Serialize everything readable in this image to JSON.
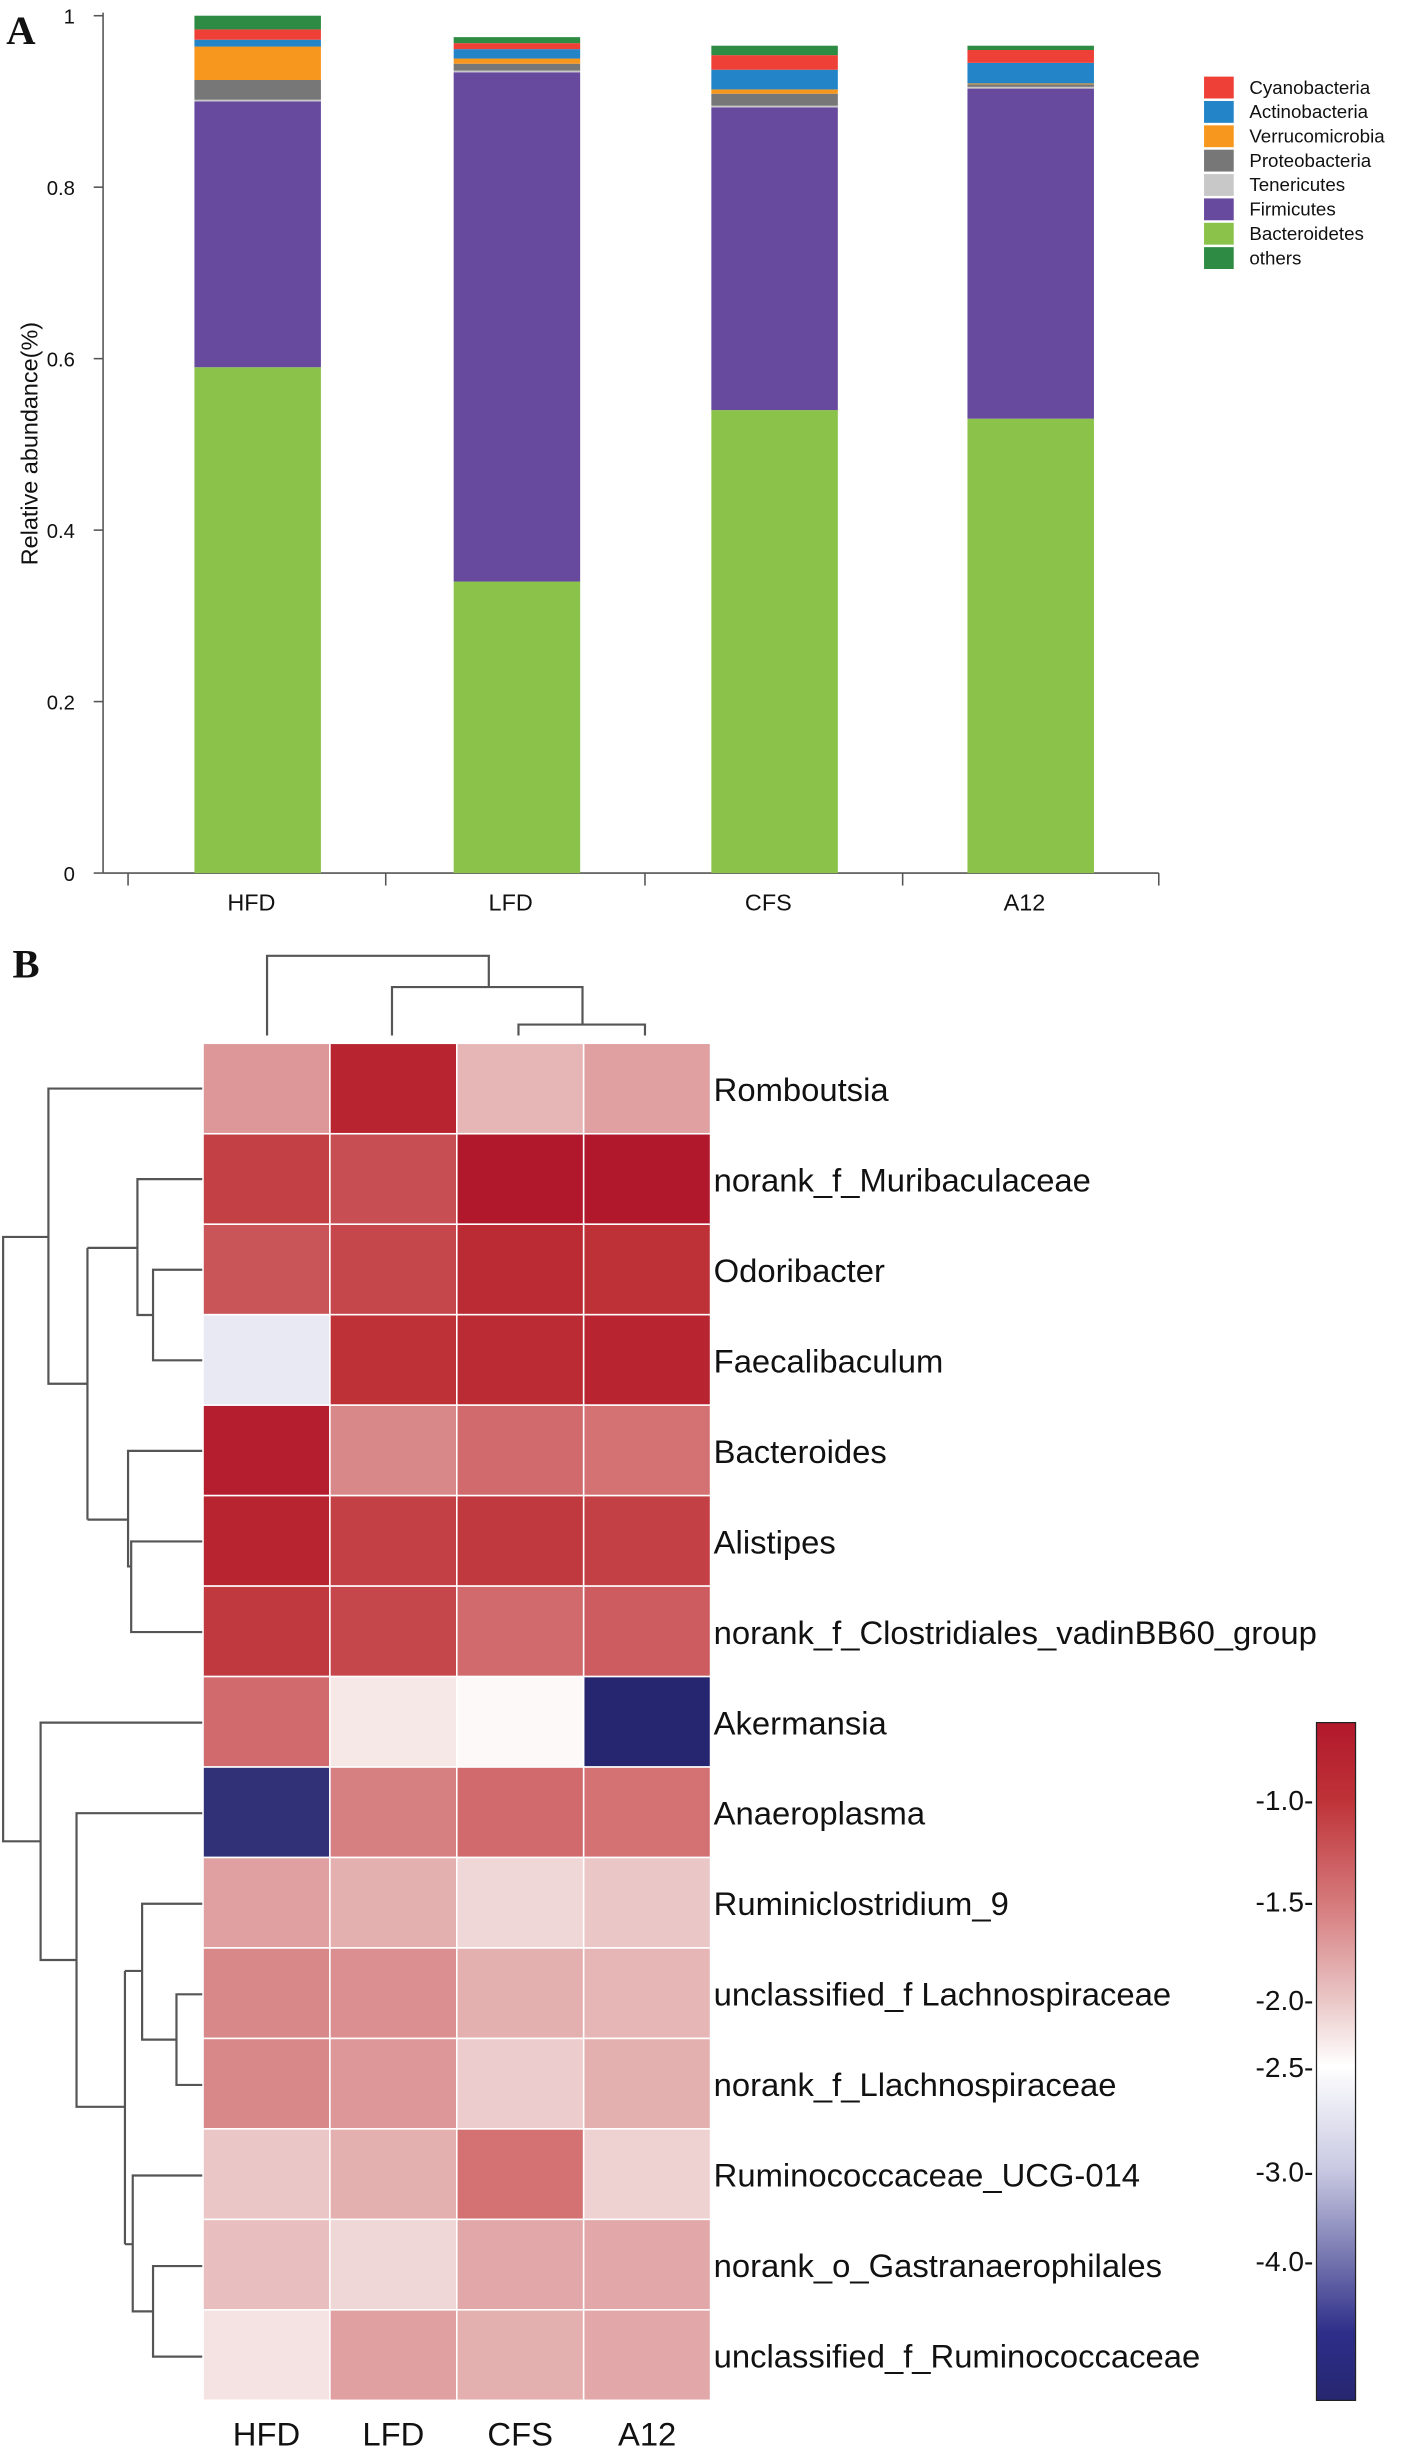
{
  "panels": {
    "a": "A",
    "b": "B"
  },
  "chart_data": [
    {
      "type": "bar",
      "stacked": true,
      "title": "",
      "xlabel": "",
      "ylabel": "Relative abundance(%)",
      "ylim": [
        0,
        1
      ],
      "yticks": [
        0,
        0.2,
        0.4,
        0.6,
        0.8,
        1
      ],
      "ytick_labels": [
        "0",
        "0.2",
        "0.4",
        "0.6",
        "0.8",
        "1"
      ],
      "categories": [
        "HFD",
        "LFD",
        "CFS",
        "A12"
      ],
      "legend_position": "top-right",
      "legend_order": [
        "Cyanobacteria",
        "Actinobacteria",
        "Verrucomicrobia",
        "Proteobacteria",
        "Tenericutes",
        "Firmicutes",
        "Bacteroidetes",
        "others"
      ],
      "series": [
        {
          "name": "Bacteroidetes",
          "color": "#8bc34a",
          "values": [
            0.59,
            0.34,
            0.54,
            0.53
          ]
        },
        {
          "name": "Firmicutes",
          "color": "#674a9e",
          "values": [
            0.31,
            0.594,
            0.353,
            0.385
          ]
        },
        {
          "name": "Tenericutes",
          "color": "#c8c8c8",
          "values": [
            0.002,
            0.002,
            0.002,
            0.002
          ]
        },
        {
          "name": "Proteobacteria",
          "color": "#777777",
          "values": [
            0.023,
            0.008,
            0.014,
            0.003
          ]
        },
        {
          "name": "Verrucomicrobia",
          "color": "#f7971e",
          "values": [
            0.039,
            0.006,
            0.005,
            0.001
          ]
        },
        {
          "name": "Actinobacteria",
          "color": "#2385c7",
          "values": [
            0.008,
            0.011,
            0.023,
            0.024
          ]
        },
        {
          "name": "Cyanobacteria",
          "color": "#ee4036",
          "values": [
            0.012,
            0.007,
            0.017,
            0.015
          ]
        },
        {
          "name": "others",
          "color": "#2e8b43",
          "values": [
            0.016,
            0.007,
            0.011,
            0.005
          ]
        }
      ]
    },
    {
      "type": "heatmap",
      "columns": [
        "HFD",
        "LFD",
        "CFS",
        "A12"
      ],
      "rows": [
        "Romboutsia",
        "norank_f_Muribaculaceae",
        "Odoribacter",
        "Faecalibaculum",
        "Bacteroides",
        "Alistipes",
        "norank_f_Clostridiales_vadinBB60_group",
        "Akermansia",
        "Anaeroplasma",
        "Ruminiclostridium_9",
        "unclassified_f Lachnospiraceae",
        "norank_f_Llachnospiraceae",
        "Ruminococcaceae_UCG-014",
        "norank_o_Gastranaerophilales",
        "unclassified_f_Ruminococcaceae"
      ],
      "values": [
        [
          -1.7,
          -0.9,
          -1.9,
          -1.75
        ],
        [
          -1.1,
          -1.2,
          -0.8,
          -0.8
        ],
        [
          -1.25,
          -1.15,
          -0.95,
          -1.0
        ],
        [
          -2.7,
          -1.0,
          -0.95,
          -0.9
        ],
        [
          -0.85,
          -1.6,
          -1.4,
          -1.45
        ],
        [
          -0.9,
          -1.1,
          -1.05,
          -1.1
        ],
        [
          -1.05,
          -1.15,
          -1.4,
          -1.3
        ],
        [
          -1.4,
          -2.3,
          -2.45,
          -4.5
        ],
        [
          -4.4,
          -1.55,
          -1.4,
          -1.45
        ],
        [
          -1.75,
          -1.85,
          -2.15,
          -2.0
        ],
        [
          -1.6,
          -1.65,
          -1.85,
          -1.9
        ],
        [
          -1.6,
          -1.7,
          -2.05,
          -1.85
        ],
        [
          -2.0,
          -1.85,
          -1.45,
          -2.1
        ],
        [
          -1.95,
          -2.15,
          -1.8,
          -1.8
        ],
        [
          -2.25,
          -1.75,
          -1.85,
          -1.8
        ]
      ],
      "colorbar_ticks": [
        "-1.0-",
        "-1.5-",
        "-2.0-",
        "-2.5-",
        "-3.0-",
        "-4.0-"
      ],
      "colorbar_range": [
        -4.8,
        -0.8
      ],
      "colors": {
        "high": "#b2182b",
        "mid": "#ffffff",
        "low": "#23236e"
      }
    }
  ]
}
